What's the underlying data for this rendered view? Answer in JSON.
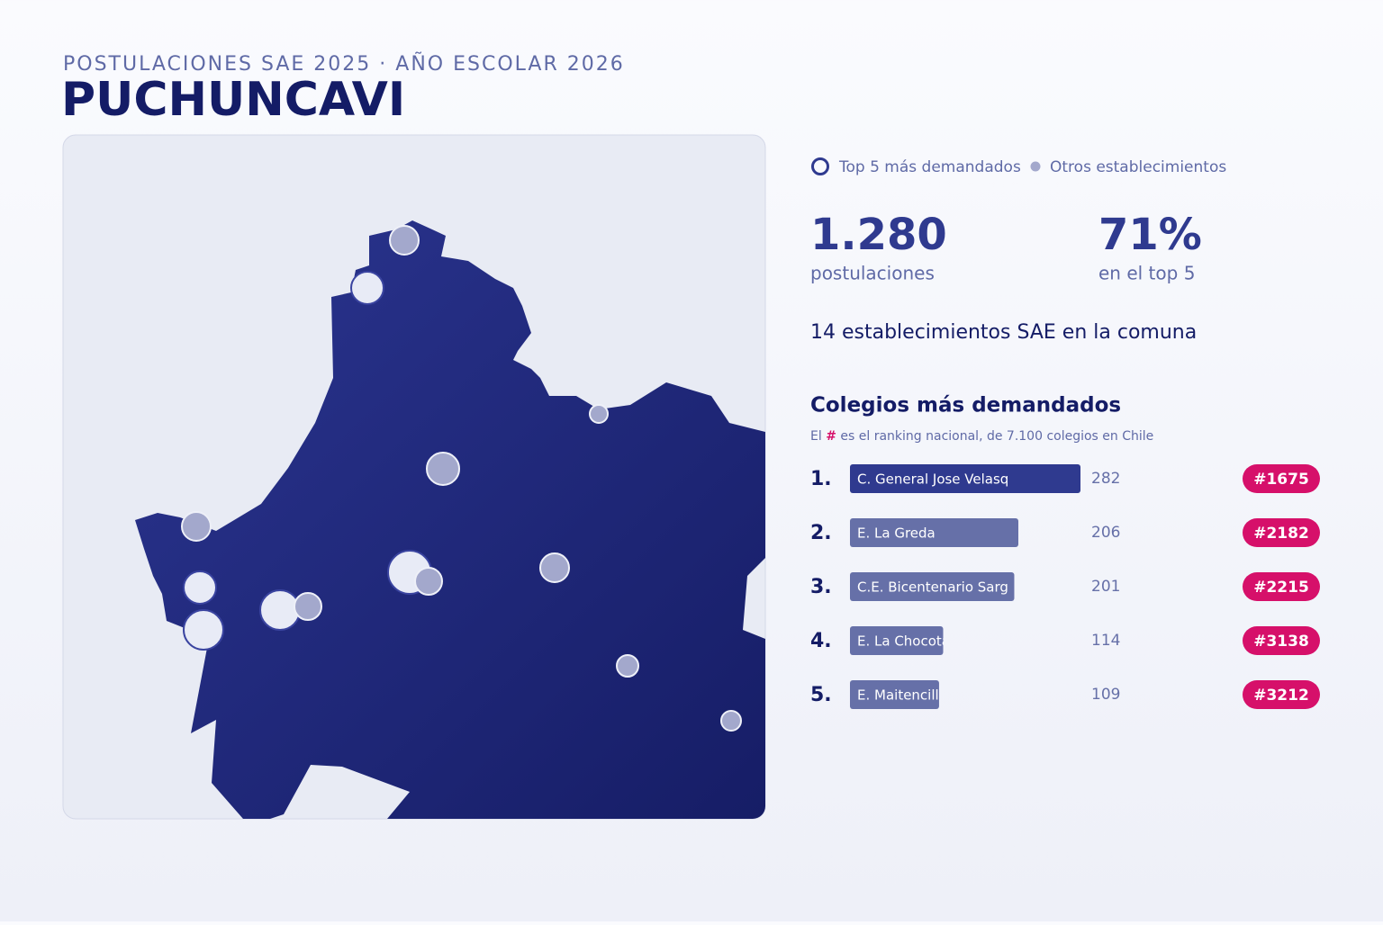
{
  "header": {
    "kicker": "POSTULACIONES SAE 2025 · AÑO ESCOLAR 2026",
    "title": "PUCHUNCAVI"
  },
  "legend": {
    "top5": "Top 5 más demandados",
    "others": "Otros establecimientos"
  },
  "stats": [
    {
      "value": "1.280",
      "label": "postulaciones"
    },
    {
      "value": "71%",
      "label": "en el top 5"
    }
  ],
  "summary": "14 establecimientos SAE en la comuna",
  "chart_data": {
    "type": "bar",
    "title": "Colegios más demandados",
    "subtitle": {
      "before": "El",
      "mark": "#",
      "after": "es el ranking nacional, de 7.100 colegios en Chile"
    },
    "ranks": [
      "1.",
      "2.",
      "3.",
      "4.",
      "5."
    ],
    "categories": [
      "C. General Jose Velasq",
      "E. La Greda",
      "C.E. Bicentenario Sarg",
      "E. La Chocota",
      "E. Maitencillo"
    ],
    "values": [
      282,
      206,
      201,
      114,
      109
    ],
    "badges": [
      "#1675",
      "#2182",
      "#2215",
      "#3138",
      "#3212"
    ],
    "colors": [
      "#2f3a8f",
      "#6670a8",
      "#6670a8",
      "#6670a8",
      "#6670a8"
    ],
    "badge_color": "#d6106a"
  }
}
